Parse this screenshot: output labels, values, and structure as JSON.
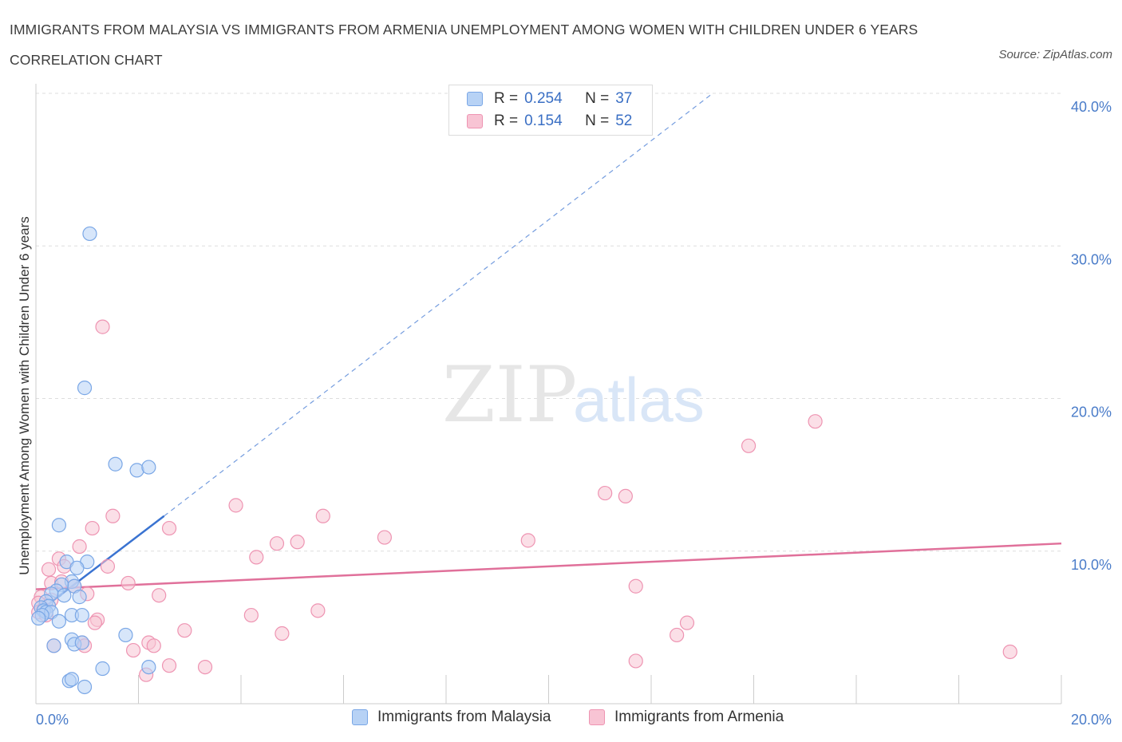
{
  "title": "IMMIGRANTS FROM MALAYSIA VS IMMIGRANTS FROM ARMENIA UNEMPLOYMENT AMONG WOMEN WITH CHILDREN UNDER 6 YEARS CORRELATION CHART",
  "source": "Source: ZipAtlas.com",
  "watermark": {
    "zip": "ZIP",
    "atlas": "atlas"
  },
  "colors": {
    "malaysia_fill": "#b7d2f5",
    "malaysia_stroke": "#7aa7e6",
    "malaysia_line": "#3a73d1",
    "armenia_fill": "#f8c4d4",
    "armenia_stroke": "#ee94b2",
    "armenia_line": "#e0709a",
    "grid": "#dddddd",
    "tick_text": "#4a7cc9"
  },
  "legend_top": {
    "rows": [
      {
        "r_label": "R = ",
        "r_value": "0.254",
        "n_label": "N = ",
        "n_value": "37"
      },
      {
        "r_label": "R = ",
        "r_value": "0.154",
        "n_label": "N = ",
        "n_value": "52"
      }
    ]
  },
  "legend_bottom": [
    "Immigrants from Malaysia",
    "Immigrants from Armenia"
  ],
  "chart_data": {
    "type": "scatter",
    "title": "IMMIGRANTS FROM MALAYSIA VS IMMIGRANTS FROM ARMENIA UNEMPLOYMENT AMONG WOMEN WITH CHILDREN UNDER 6 YEARS CORRELATION CHART",
    "xlabel": "",
    "ylabel": "Unemployment Among Women with Children Under 6 years",
    "xlim": [
      0,
      20
    ],
    "ylim": [
      0,
      40
    ],
    "x_ticks": [
      {
        "value": 0,
        "label": "0.0%"
      },
      {
        "value": 20,
        "label": "20.0%"
      }
    ],
    "y_ticks": [
      {
        "value": 10,
        "label": "10.0%"
      },
      {
        "value": 20,
        "label": "20.0%"
      },
      {
        "value": 30,
        "label": "30.0%"
      },
      {
        "value": 40,
        "label": "40.0%"
      }
    ],
    "grid": true,
    "legend": "top-center",
    "series": [
      {
        "name": "Immigrants from Malaysia",
        "R": 0.254,
        "N": 37,
        "trend": {
          "x": [
            0,
            2.5
          ],
          "y": [
            5.9,
            12.3
          ],
          "dashed_extension_to": [
            13.2,
            40
          ]
        },
        "points": [
          [
            1.05,
            30.8
          ],
          [
            0.95,
            20.7
          ],
          [
            1.55,
            15.7
          ],
          [
            1.97,
            15.3
          ],
          [
            2.2,
            15.5
          ],
          [
            0.45,
            11.7
          ],
          [
            0.6,
            9.3
          ],
          [
            1.0,
            9.3
          ],
          [
            0.8,
            8.9
          ],
          [
            0.7,
            8.0
          ],
          [
            0.75,
            7.7
          ],
          [
            0.5,
            7.8
          ],
          [
            0.4,
            7.4
          ],
          [
            0.55,
            7.1
          ],
          [
            0.3,
            7.2
          ],
          [
            0.85,
            7.0
          ],
          [
            0.2,
            6.7
          ],
          [
            0.25,
            6.4
          ],
          [
            0.1,
            6.3
          ],
          [
            0.15,
            6.1
          ],
          [
            0.2,
            6.0
          ],
          [
            0.3,
            6.0
          ],
          [
            0.12,
            5.8
          ],
          [
            0.05,
            5.6
          ],
          [
            0.7,
            5.8
          ],
          [
            0.9,
            5.8
          ],
          [
            0.45,
            5.4
          ],
          [
            0.35,
            3.8
          ],
          [
            0.7,
            4.2
          ],
          [
            0.75,
            3.9
          ],
          [
            0.9,
            4.0
          ],
          [
            1.75,
            4.5
          ],
          [
            1.3,
            2.3
          ],
          [
            2.2,
            2.4
          ],
          [
            0.65,
            1.5
          ],
          [
            0.7,
            1.6
          ],
          [
            0.95,
            1.1
          ]
        ]
      },
      {
        "name": "Immigrants from Armenia",
        "R": 0.154,
        "N": 52,
        "trend": {
          "x": [
            0,
            20
          ],
          "y": [
            7.5,
            10.5
          ]
        },
        "points": [
          [
            1.3,
            24.7
          ],
          [
            15.2,
            18.5
          ],
          [
            13.9,
            16.9
          ],
          [
            11.1,
            13.8
          ],
          [
            11.5,
            13.6
          ],
          [
            3.9,
            13.0
          ],
          [
            5.6,
            12.3
          ],
          [
            1.5,
            12.3
          ],
          [
            1.1,
            11.5
          ],
          [
            2.6,
            11.5
          ],
          [
            6.8,
            10.9
          ],
          [
            9.6,
            10.7
          ],
          [
            4.7,
            10.5
          ],
          [
            5.1,
            10.6
          ],
          [
            0.85,
            10.3
          ],
          [
            4.3,
            9.6
          ],
          [
            0.45,
            9.5
          ],
          [
            1.4,
            9.0
          ],
          [
            0.25,
            8.8
          ],
          [
            0.3,
            7.9
          ],
          [
            0.5,
            8.0
          ],
          [
            0.75,
            7.7
          ],
          [
            1.8,
            7.9
          ],
          [
            1.0,
            7.2
          ],
          [
            2.4,
            7.1
          ],
          [
            11.7,
            7.7
          ],
          [
            0.1,
            7.0
          ],
          [
            0.3,
            6.8
          ],
          [
            0.05,
            6.6
          ],
          [
            0.15,
            6.2
          ],
          [
            0.05,
            6.0
          ],
          [
            0.2,
            5.8
          ],
          [
            5.5,
            6.1
          ],
          [
            4.2,
            5.8
          ],
          [
            1.2,
            5.5
          ],
          [
            1.15,
            5.3
          ],
          [
            2.9,
            4.8
          ],
          [
            4.8,
            4.6
          ],
          [
            12.5,
            4.5
          ],
          [
            12.7,
            5.3
          ],
          [
            0.35,
            3.8
          ],
          [
            0.9,
            4.0
          ],
          [
            0.95,
            3.8
          ],
          [
            2.2,
            4.0
          ],
          [
            2.3,
            3.8
          ],
          [
            1.9,
            3.5
          ],
          [
            2.6,
            2.5
          ],
          [
            3.3,
            2.4
          ],
          [
            2.15,
            1.9
          ],
          [
            11.7,
            2.8
          ],
          [
            19.0,
            3.4
          ],
          [
            0.55,
            9.0
          ]
        ]
      }
    ]
  }
}
